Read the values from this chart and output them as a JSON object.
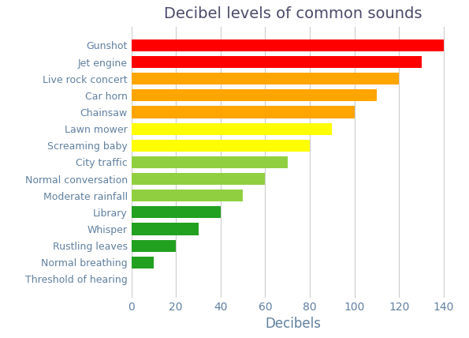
{
  "title": "Decibel levels of common sounds",
  "xlabel": "Decibels",
  "categories": [
    "Threshold of hearing",
    "Normal breathing",
    "Rustling leaves",
    "Whisper",
    "Library",
    "Moderate rainfall",
    "Normal conversation",
    "City traffic",
    "Screaming baby",
    "Lawn mower",
    "Chainsaw",
    "Car horn",
    "Live rock concert",
    "Jet engine",
    "Gunshot"
  ],
  "values": [
    0,
    10,
    20,
    30,
    40,
    50,
    60,
    70,
    80,
    90,
    100,
    110,
    120,
    130,
    140
  ],
  "colors": [
    "#90EE40",
    "#22A020",
    "#22A020",
    "#22A020",
    "#22A020",
    "#90D040",
    "#90D040",
    "#90D040",
    "#FFFF00",
    "#FFFF00",
    "#FFA500",
    "#FFA500",
    "#FFA500",
    "#FF0000",
    "#FF0000"
  ],
  "xlim": [
    0,
    145
  ],
  "xticks": [
    0,
    20,
    40,
    60,
    80,
    100,
    120,
    140
  ],
  "title_fontsize": 14,
  "ytick_fontsize": 9,
  "xtick_fontsize": 10,
  "xlabel_fontsize": 12,
  "bar_height": 0.72,
  "title_color": "#4A4A6A",
  "tick_color": "#6080A0",
  "xlabel_color": "#6080A0",
  "grid_color": "#CCCCCC",
  "bg_color": "#FFFFFF"
}
